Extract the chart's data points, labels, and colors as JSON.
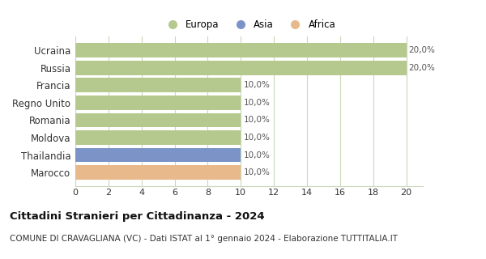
{
  "categories": [
    "Ucraina",
    "Russia",
    "Francia",
    "Regno Unito",
    "Romania",
    "Moldova",
    "Thailandia",
    "Marocco"
  ],
  "values": [
    20.0,
    20.0,
    10.0,
    10.0,
    10.0,
    10.0,
    10.0,
    10.0
  ],
  "bar_colors": [
    "#b5c98e",
    "#b5c98e",
    "#b5c98e",
    "#b5c98e",
    "#b5c98e",
    "#b5c98e",
    "#7b93c7",
    "#e8b98a"
  ],
  "legend_labels": [
    "Europa",
    "Asia",
    "Africa"
  ],
  "legend_colors": [
    "#b5c98e",
    "#7b93c7",
    "#e8b98a"
  ],
  "labels": [
    "20,0%",
    "20,0%",
    "10,0%",
    "10,0%",
    "10,0%",
    "10,0%",
    "10,0%",
    "10,0%"
  ],
  "xlim": [
    0,
    21
  ],
  "xticks": [
    0,
    2,
    4,
    6,
    8,
    10,
    12,
    14,
    16,
    18,
    20
  ],
  "title": "Cittadini Stranieri per Cittadinanza - 2024",
  "subtitle": "COMUNE DI CRAVAGLIANA (VC) - Dati ISTAT al 1° gennaio 2024 - Elaborazione TUTTITALIA.IT",
  "background_color": "#ffffff",
  "grid_color": "#c8d8b8",
  "label_fontsize": 7.5,
  "title_fontsize": 9.5,
  "subtitle_fontsize": 7.5,
  "ytick_fontsize": 8.5,
  "xtick_fontsize": 8.0
}
